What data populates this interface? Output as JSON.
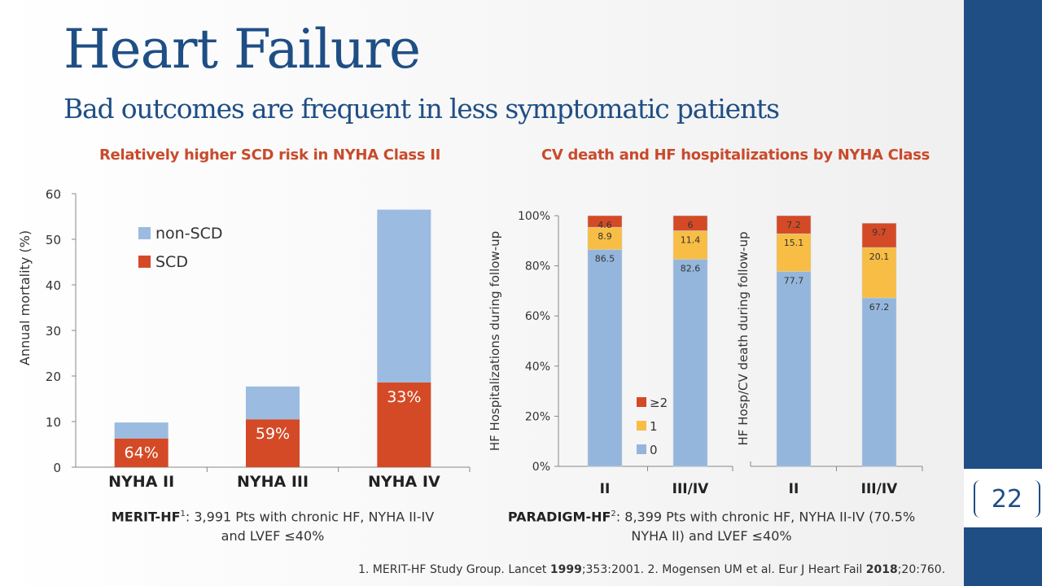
{
  "slide": {
    "title": "Heart Failure",
    "subtitle": "Bad outcomes are frequent in less symptomatic patients",
    "page_number": "22"
  },
  "left_chart": {
    "heading": "Relatively higher SCD risk in NYHA Class II",
    "caption_study": "MERIT-HF",
    "caption_sup": "1",
    "caption_text": ": 3,991 Pts with chronic HF, NYHA II-IV",
    "caption_line2": "and LVEF ≤40%"
  },
  "right_chart": {
    "heading": "CV death and HF hospitalizations by NYHA Class",
    "caption_study": "PARADIGM-HF",
    "caption_sup": "2",
    "caption_text": ": 8,399 Pts with chronic HF, NYHA II-IV (70.5%",
    "caption_line2": "NYHA II) and LVEF ≤40%"
  },
  "references": {
    "r1_pre": "1. MERIT-HF Study Group. Lancet ",
    "r1_year": "1999",
    "r1_post": ";353:2001. 2. Mogensen UM et al. Eur J Heart Fail ",
    "r2_year": "2018",
    "r2_post": ";20:760."
  },
  "colors": {
    "title": "#1f4e85",
    "heading": "#c94a2b",
    "scd": "#d44a26",
    "non_scd": "#9bbbe0",
    "zero": "#95b6dc",
    "one": "#f7bd45",
    "two_plus": "#d44a26"
  },
  "chart_data": [
    {
      "type": "bar",
      "stacked": true,
      "categories": [
        "NYHA II",
        "NYHA III",
        "NYHA IV"
      ],
      "ylabel": "Annual mortality (%)",
      "ylim": [
        0,
        60
      ],
      "yticks": [
        0,
        10,
        20,
        30,
        40,
        50,
        60
      ],
      "legend_position": "top-left",
      "series": [
        {
          "name": "SCD",
          "values": [
            6.3,
            10.5,
            18.6
          ],
          "color": "#d44a26"
        },
        {
          "name": "non-SCD",
          "values": [
            3.5,
            7.2,
            37.9
          ],
          "color": "#9bbbe0"
        }
      ],
      "bar_labels": [
        "64%",
        "59%",
        "33%"
      ]
    },
    {
      "type": "bar",
      "stacked": true,
      "ylabel": "HF Hospitalizations  during follow-up",
      "ylim": [
        0,
        100
      ],
      "yticks": [
        "0%",
        "20%",
        "40%",
        "60%",
        "80%",
        "100%"
      ],
      "categories": [
        "II",
        "III/IV"
      ],
      "legend_position": "bottom-center",
      "series": [
        {
          "name": "0",
          "values": [
            86.5,
            82.6
          ],
          "color": "#95b6dc"
        },
        {
          "name": "1",
          "values": [
            8.9,
            11.4
          ],
          "color": "#f7bd45"
        },
        {
          "name": "≥2",
          "values": [
            4.6,
            6
          ],
          "color": "#d44a26"
        }
      ]
    },
    {
      "type": "bar",
      "stacked": true,
      "ylabel": "HF Hosp/CV death during follow-up",
      "ylim": [
        0,
        100
      ],
      "categories": [
        "II",
        "III/IV"
      ],
      "series": [
        {
          "name": "0",
          "values": [
            77.7,
            67.2
          ],
          "color": "#95b6dc"
        },
        {
          "name": "1",
          "values": [
            15.1,
            20.1
          ],
          "color": "#f7bd45"
        },
        {
          "name": "≥2",
          "values": [
            7.2,
            9.7
          ],
          "color": "#d44a26"
        }
      ]
    }
  ]
}
